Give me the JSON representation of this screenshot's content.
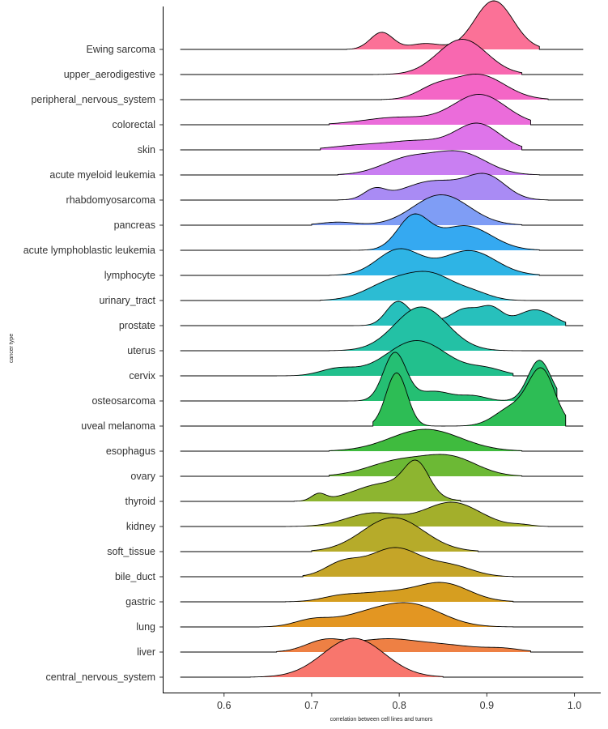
{
  "chart_data": {
    "type": "area",
    "subtype": "ridgeline",
    "xlabel": "correlation between cell lines and tumors",
    "ylabel": "cancer type",
    "xlim": [
      0.53,
      1.03
    ],
    "xticks": [
      0.6,
      0.7,
      0.8,
      0.9,
      1.0
    ],
    "xtick_labels": [
      "0.6",
      "0.7",
      "0.8",
      "0.9",
      "1.0"
    ],
    "grid": false,
    "legend": "none",
    "baseline_start": 0.55,
    "baseline_end": 1.01,
    "series": [
      {
        "name": "central_nervous_system",
        "color": "#F8766D",
        "range": [
          0.63,
          0.85
        ],
        "peak": 1.6,
        "components": [
          [
            0.748,
            0.035,
            1.0
          ]
        ]
      },
      {
        "name": "liver",
        "color": "#EE8044",
        "range": [
          0.66,
          0.95
        ],
        "peak": 0.55,
        "components": [
          [
            0.715,
            0.022,
            0.8
          ],
          [
            0.78,
            0.035,
            0.85
          ],
          [
            0.85,
            0.04,
            0.5
          ],
          [
            0.92,
            0.02,
            0.2
          ]
        ]
      },
      {
        "name": "lung",
        "color": "#E39622",
        "range": [
          0.64,
          0.93
        ],
        "peak": 1.0,
        "components": [
          [
            0.7,
            0.02,
            0.3
          ],
          [
            0.76,
            0.035,
            0.5
          ],
          [
            0.815,
            0.035,
            1.0
          ]
        ]
      },
      {
        "name": "gastric",
        "color": "#D69E20",
        "range": [
          0.67,
          0.93
        ],
        "peak": 0.8,
        "components": [
          [
            0.73,
            0.02,
            0.2
          ],
          [
            0.78,
            0.035,
            0.5
          ],
          [
            0.85,
            0.03,
            1.0
          ]
        ]
      },
      {
        "name": "bile_duct",
        "color": "#C5A528",
        "range": [
          0.69,
          0.93
        ],
        "peak": 1.2,
        "components": [
          [
            0.735,
            0.02,
            0.45
          ],
          [
            0.795,
            0.03,
            1.0
          ],
          [
            0.86,
            0.025,
            0.35
          ]
        ]
      },
      {
        "name": "soft_tissue",
        "color": "#B6AB2A",
        "range": [
          0.7,
          0.89
        ],
        "peak": 1.4,
        "components": [
          [
            0.793,
            0.035,
            1.0
          ]
        ]
      },
      {
        "name": "kidney",
        "color": "#A3AF2B",
        "range": [
          0.67,
          0.97
        ],
        "peak": 1.0,
        "components": [
          [
            0.77,
            0.03,
            0.55
          ],
          [
            0.86,
            0.032,
            1.0
          ],
          [
            0.94,
            0.012,
            0.06
          ]
        ]
      },
      {
        "name": "thyroid",
        "color": "#8DB530",
        "range": [
          0.68,
          0.87
        ],
        "peak": 1.7,
        "components": [
          [
            0.708,
            0.008,
            0.22
          ],
          [
            0.785,
            0.035,
            0.6
          ],
          [
            0.82,
            0.014,
            1.0
          ]
        ]
      },
      {
        "name": "ovary",
        "color": "#6CB935",
        "range": [
          0.72,
          0.94
        ],
        "peak": 0.9,
        "components": [
          [
            0.8,
            0.035,
            0.7
          ],
          [
            0.86,
            0.03,
            0.8
          ]
        ]
      },
      {
        "name": "esophagus",
        "color": "#3FBB3E",
        "range": [
          0.72,
          0.94
        ],
        "peak": 0.9,
        "components": [
          [
            0.83,
            0.04,
            1.0
          ]
        ]
      },
      {
        "name": "uveal melanoma",
        "color": "#2DBD55",
        "range": [
          0.77,
          0.99
        ],
        "peak": 2.4,
        "components": [
          [
            0.797,
            0.012,
            1.0
          ],
          [
            0.963,
            0.015,
            1.0
          ],
          [
            0.93,
            0.02,
            0.35
          ]
        ]
      },
      {
        "name": "osteosarcoma",
        "color": "#25BF73",
        "range": [
          0.73,
          0.98
        ],
        "peak": 2.0,
        "components": [
          [
            0.795,
            0.013,
            1.0
          ],
          [
            0.84,
            0.02,
            0.2
          ],
          [
            0.885,
            0.015,
            0.1
          ],
          [
            0.96,
            0.013,
            0.85
          ]
        ]
      },
      {
        "name": "cervix",
        "color": "#22C08D",
        "range": [
          0.66,
          0.93
        ],
        "peak": 1.45,
        "components": [
          [
            0.73,
            0.02,
            0.2
          ],
          [
            0.82,
            0.035,
            1.0
          ],
          [
            0.9,
            0.02,
            0.18
          ]
        ]
      },
      {
        "name": "uterus",
        "color": "#23C1A5",
        "range": [
          0.72,
          0.94
        ],
        "peak": 1.8,
        "components": [
          [
            0.825,
            0.03,
            1.0
          ]
        ]
      },
      {
        "name": "prostate",
        "color": "#27C0BC",
        "range": [
          0.74,
          0.99
        ],
        "peak": 1.0,
        "components": [
          [
            0.798,
            0.013,
            1.0
          ],
          [
            0.83,
            0.02,
            0.25
          ],
          [
            0.875,
            0.015,
            0.7
          ],
          [
            0.905,
            0.013,
            0.75
          ],
          [
            0.955,
            0.02,
            0.7
          ]
        ]
      },
      {
        "name": "urinary_tract",
        "color": "#2CBCD3",
        "range": [
          0.71,
          0.95
        ],
        "peak": 1.2,
        "components": [
          [
            0.795,
            0.03,
            0.85
          ],
          [
            0.84,
            0.025,
            0.9
          ],
          [
            0.885,
            0.02,
            0.3
          ]
        ]
      },
      {
        "name": "lymphocyte",
        "color": "#2EB4E5",
        "range": [
          0.72,
          0.96
        ],
        "peak": 1.1,
        "components": [
          [
            0.8,
            0.025,
            1.0
          ],
          [
            0.88,
            0.03,
            0.95
          ]
        ]
      },
      {
        "name": "acute lymphoblastic leukemia",
        "color": "#35A9F1",
        "range": [
          0.73,
          0.96
        ],
        "peak": 1.5,
        "components": [
          [
            0.816,
            0.018,
            1.0
          ],
          [
            0.875,
            0.03,
            0.75
          ]
        ]
      },
      {
        "name": "pancreas",
        "color": "#7F9DF5",
        "range": [
          0.7,
          0.94
        ],
        "peak": 1.25,
        "components": [
          [
            0.73,
            0.02,
            0.1
          ],
          [
            0.848,
            0.032,
            1.0
          ]
        ]
      },
      {
        "name": "rhabdomyosarcoma",
        "color": "#A98BF4",
        "range": [
          0.73,
          0.97
        ],
        "peak": 1.1,
        "components": [
          [
            0.772,
            0.012,
            0.35
          ],
          [
            0.84,
            0.035,
            0.7
          ],
          [
            0.9,
            0.022,
            0.8
          ]
        ]
      },
      {
        "name": "acute myeloid leukemia",
        "color": "#C97FF2",
        "range": [
          0.73,
          0.96
        ],
        "peak": 1.0,
        "components": [
          [
            0.81,
            0.03,
            0.75
          ],
          [
            0.87,
            0.03,
            1.0
          ]
        ]
      },
      {
        "name": "skin",
        "color": "#DE74EA",
        "range": [
          0.71,
          0.94
        ],
        "peak": 1.1,
        "components": [
          [
            0.75,
            0.03,
            0.15
          ],
          [
            0.82,
            0.035,
            0.35
          ],
          [
            0.89,
            0.025,
            1.0
          ]
        ]
      },
      {
        "name": "colorectal",
        "color": "#EB6CDA",
        "range": [
          0.72,
          0.95
        ],
        "peak": 1.25,
        "components": [
          [
            0.8,
            0.04,
            0.25
          ],
          [
            0.892,
            0.03,
            1.0
          ]
        ]
      },
      {
        "name": "peripheral_nervous_system",
        "color": "#F466C6",
        "range": [
          0.78,
          0.97
        ],
        "peak": 1.05,
        "components": [
          [
            0.84,
            0.02,
            0.4
          ],
          [
            0.89,
            0.03,
            1.0
          ]
        ]
      },
      {
        "name": "upper_aerodigestive",
        "color": "#F868B0",
        "range": [
          0.77,
          0.94
        ],
        "peak": 1.45,
        "components": [
          [
            0.872,
            0.028,
            1.0
          ]
        ]
      },
      {
        "name": "Ewing sarcoma",
        "color": "#FB7197",
        "range": [
          0.74,
          0.96
        ],
        "peak": 2.0,
        "components": [
          [
            0.78,
            0.013,
            0.35
          ],
          [
            0.83,
            0.018,
            0.12
          ],
          [
            0.908,
            0.022,
            1.0
          ]
        ]
      }
    ]
  }
}
